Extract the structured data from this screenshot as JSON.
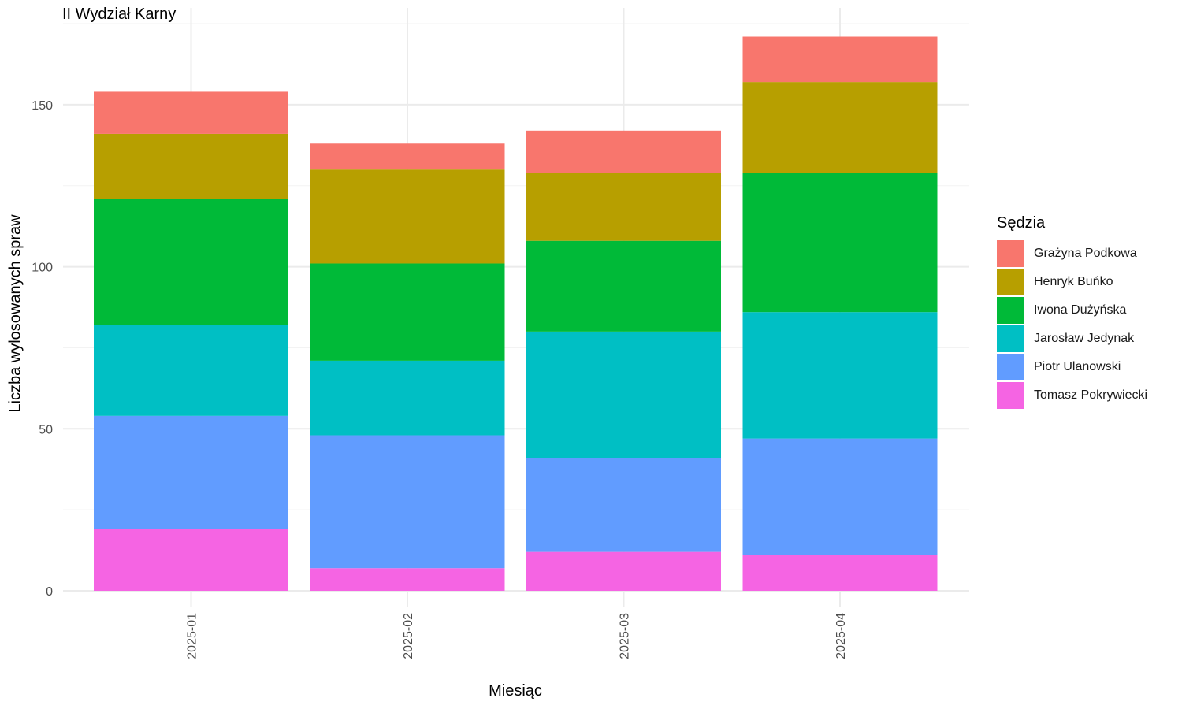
{
  "chart_data": {
    "type": "bar",
    "stacked": true,
    "title": "II Wydział Karny",
    "xlabel": "Miesiąc",
    "ylabel": "Liczba wylosowanych spraw",
    "categories": [
      "2025-01",
      "2025-02",
      "2025-03",
      "2025-04"
    ],
    "ylim": [
      0,
      175
    ],
    "yticks": [
      0,
      50,
      100,
      150
    ],
    "ytick_labels": [
      "0",
      "50",
      "100",
      "150"
    ],
    "grid": true,
    "legend_title": "Sędzia",
    "legend_position": "right",
    "series": [
      {
        "name": "Grażyna Podkowa",
        "color": "#F8766D",
        "values": [
          13,
          8,
          13,
          14
        ]
      },
      {
        "name": "Henryk Buńko",
        "color": "#B79F00",
        "values": [
          20,
          29,
          21,
          28
        ]
      },
      {
        "name": "Iwona Dużyńska",
        "color": "#00BA38",
        "values": [
          39,
          30,
          28,
          43
        ]
      },
      {
        "name": "Jarosław Jedynak",
        "color": "#00BFC4",
        "values": [
          28,
          23,
          39,
          39
        ]
      },
      {
        "name": "Piotr Ulanowski",
        "color": "#619CFF",
        "values": [
          35,
          41,
          29,
          36
        ]
      },
      {
        "name": "Tomasz Pokrywiecki",
        "color": "#F564E3",
        "values": [
          19,
          7,
          12,
          11
        ]
      }
    ]
  }
}
